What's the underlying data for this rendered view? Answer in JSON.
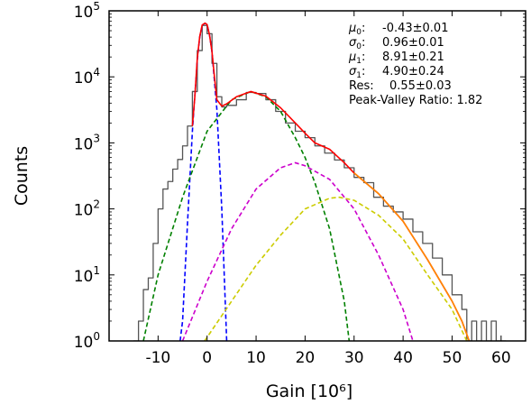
{
  "chart_data": {
    "type": "line",
    "xlabel": "Gain [10⁶]",
    "ylabel": "Counts",
    "xlim": [
      -20,
      65
    ],
    "ylim": [
      1,
      100000
    ],
    "yscale": "log",
    "grid": false,
    "xticks": [
      -10,
      0,
      10,
      20,
      30,
      40,
      50,
      60
    ],
    "xtick_labels": [
      "-10",
      "0",
      "10",
      "20",
      "30",
      "40",
      "50",
      "60"
    ],
    "yticks": [
      1,
      10,
      100,
      1000,
      10000,
      100000
    ],
    "ytick_labels": [
      {
        "base": "10",
        "exp": "0"
      },
      {
        "base": "10",
        "exp": "1"
      },
      {
        "base": "10",
        "exp": "2"
      },
      {
        "base": "10",
        "exp": "3"
      },
      {
        "base": "10",
        "exp": "4"
      },
      {
        "base": "10",
        "exp": "5"
      }
    ],
    "stats": [
      {
        "sym": "μ",
        "sub": "0",
        "sep": ":",
        "value": "-0.43±0.01"
      },
      {
        "sym": "σ",
        "sub": "0",
        "sep": ":",
        "value": "0.96±0.01"
      },
      {
        "sym": "μ",
        "sub": "1",
        "sep": ":",
        "value": "8.91±0.21"
      },
      {
        "sym": "σ",
        "sub": "1",
        "sep": ":",
        "value": "4.90±0.24"
      },
      {
        "sym": "Res:",
        "sub": "",
        "sep": "",
        "value": "0.55±0.03"
      },
      {
        "sym": "Peak-Valley Ratio:",
        "sub": "",
        "sep": "",
        "value": "1.82"
      }
    ],
    "series": [
      {
        "style": "step",
        "color": "#555555",
        "x": [
          -15,
          -14,
          -13,
          -12,
          -11,
          -10,
          -9,
          -8,
          -7,
          -6,
          -5,
          -4,
          -3,
          -2,
          -1,
          0,
          1,
          2,
          3,
          4,
          6,
          8,
          10,
          12,
          14,
          16,
          18,
          20,
          22,
          24,
          26,
          28,
          30,
          32,
          34,
          36,
          38,
          40,
          42,
          44,
          46,
          48,
          50,
          52,
          53,
          54,
          55,
          56,
          57,
          58,
          59,
          60
        ],
        "y": [
          1,
          2,
          6,
          9,
          30,
          100,
          200,
          260,
          400,
          560,
          900,
          1800,
          6000,
          25000,
          60000,
          45000,
          16000,
          5000,
          3500,
          3700,
          4500,
          5800,
          5600,
          4500,
          3000,
          2000,
          1500,
          1200,
          900,
          700,
          550,
          420,
          300,
          250,
          150,
          110,
          90,
          70,
          45,
          30,
          18,
          10,
          5,
          3,
          1,
          2,
          1,
          2,
          1,
          2,
          1,
          1
        ]
      },
      {
        "style": "dashed",
        "color": "#0000ff",
        "x": [
          -5.5,
          -5,
          -4,
          -3,
          -2,
          -1.5,
          -1,
          -0.43,
          0,
          0.5,
          1,
          2,
          3,
          4
        ],
        "y": [
          1,
          2,
          60,
          1500,
          18000,
          40000,
          60000,
          65000,
          62000,
          43000,
          24000,
          3200,
          100,
          1
        ]
      },
      {
        "style": "dashed",
        "color": "#008000",
        "x": [
          -13,
          -10,
          -5,
          0,
          5,
          8.91,
          12,
          15,
          18,
          20,
          22,
          25,
          28,
          29
        ],
        "y": [
          1,
          10,
          150,
          1500,
          4500,
          6000,
          5000,
          3000,
          1200,
          600,
          250,
          50,
          4,
          1
        ]
      },
      {
        "style": "dashed",
        "color": "#cc00cc",
        "x": [
          -5,
          0,
          5,
          10,
          15,
          18,
          20,
          25,
          30,
          35,
          40,
          42
        ],
        "y": [
          1,
          8,
          50,
          200,
          420,
          500,
          450,
          280,
          100,
          20,
          3,
          1
        ]
      },
      {
        "style": "dashed",
        "color": "#cccc00",
        "x": [
          -0.5,
          5,
          10,
          15,
          20,
          25,
          27,
          30,
          35,
          40,
          45,
          50,
          53
        ],
        "y": [
          1,
          4,
          14,
          40,
          100,
          145,
          150,
          135,
          80,
          35,
          10,
          3,
          1
        ]
      },
      {
        "style": "solid",
        "color": "#ff0000",
        "x": [
          -3,
          -2.5,
          -2,
          -1.5,
          -1,
          -0.43,
          0,
          0.5,
          1,
          1.5,
          2,
          3,
          4,
          6,
          8.91,
          12,
          15,
          18,
          20,
          22,
          25,
          28,
          30,
          35,
          40,
          45,
          50,
          52,
          53.5
        ],
        "y": [
          1800,
          5000,
          19000,
          41000,
          61000,
          65000,
          62000,
          43000,
          24000,
          10000,
          4500,
          3600,
          3900,
          5000,
          6000,
          5100,
          3400,
          2000,
          1400,
          1000,
          800,
          500,
          350,
          170,
          65,
          17,
          4,
          2,
          1
        ]
      },
      {
        "style": "solid",
        "color": "#ff8800",
        "x": [
          30,
          35,
          40,
          45,
          50,
          52,
          53.5
        ],
        "y": [
          350,
          170,
          65,
          17,
          4,
          2,
          1
        ]
      }
    ]
  }
}
